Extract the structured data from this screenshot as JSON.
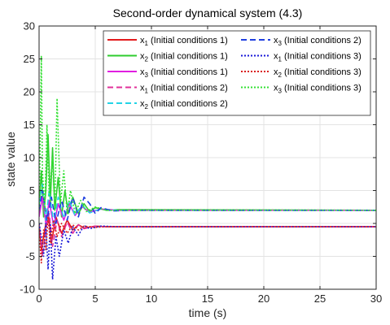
{
  "chart_data": {
    "type": "line",
    "title": "Second-order dynamical system (4.3)",
    "xlabel": "time (s)",
    "ylabel": "state value",
    "xlim": [
      0,
      30
    ],
    "ylim": [
      -10,
      30
    ],
    "xticks": [
      0,
      5,
      10,
      15,
      20,
      25,
      30
    ],
    "yticks": [
      -10,
      -5,
      0,
      5,
      10,
      15,
      20,
      25,
      30
    ],
    "grid": true,
    "legend_position": "top-right",
    "series": [
      {
        "name": "x1 (Initial conditions 1)",
        "var": "x",
        "sub": "1",
        "cond": "(Initial conditions 1)",
        "color": "#e31a1c",
        "dash": "solid",
        "points": [
          [
            0,
            0
          ],
          [
            0.2,
            -4
          ],
          [
            0.5,
            -1
          ],
          [
            0.8,
            2
          ],
          [
            1.1,
            -3
          ],
          [
            1.5,
            1
          ],
          [
            2,
            -1.5
          ],
          [
            2.5,
            0.5
          ],
          [
            3,
            -1
          ],
          [
            3.5,
            -0.2
          ],
          [
            4,
            -0.7
          ],
          [
            5,
            -0.4
          ],
          [
            6,
            -0.5
          ],
          [
            30,
            -0.5
          ]
        ]
      },
      {
        "name": "x2 (Initial conditions 1)",
        "var": "x",
        "sub": "2",
        "cond": "(Initial conditions 1)",
        "color": "#2ecc2e",
        "dash": "solid",
        "points": [
          [
            0,
            2
          ],
          [
            0.2,
            8
          ],
          [
            0.4,
            1
          ],
          [
            0.6,
            5
          ],
          [
            0.8,
            13.5
          ],
          [
            1,
            3
          ],
          [
            1.2,
            11.5
          ],
          [
            1.4,
            2
          ],
          [
            1.7,
            7
          ],
          [
            2,
            1
          ],
          [
            2.3,
            5
          ],
          [
            2.6,
            1.5
          ],
          [
            3,
            4
          ],
          [
            3.5,
            1.5
          ],
          [
            4,
            3
          ],
          [
            4.5,
            1.8
          ],
          [
            5,
            2.4
          ],
          [
            6,
            2
          ],
          [
            7,
            2.1
          ],
          [
            30,
            2
          ]
        ]
      },
      {
        "name": "x3 (Initial conditions 1)",
        "var": "x",
        "sub": "3",
        "cond": "(Initial conditions 1)",
        "color": "#e01ee0",
        "dash": "solid",
        "points": [
          [
            0,
            1
          ],
          [
            0.3,
            4
          ],
          [
            0.6,
            0
          ],
          [
            0.9,
            3.5
          ],
          [
            1.3,
            -0.5
          ],
          [
            1.7,
            3
          ],
          [
            2.2,
            0.5
          ],
          [
            2.7,
            3
          ],
          [
            3.2,
            1.2
          ],
          [
            3.8,
            2.6
          ],
          [
            4.5,
            1.7
          ],
          [
            5.5,
            2.2
          ],
          [
            7,
            2
          ],
          [
            30,
            2
          ]
        ]
      },
      {
        "name": "x1 (Initial conditions 2)",
        "var": "x",
        "sub": "1",
        "cond": "(Initial conditions 2)",
        "color": "#e0309a",
        "dash": "dash",
        "points": [
          [
            0,
            0
          ],
          [
            0.3,
            -5
          ],
          [
            0.6,
            -1
          ],
          [
            0.9,
            1.5
          ],
          [
            1.2,
            -3.5
          ],
          [
            1.6,
            0.5
          ],
          [
            2,
            -2
          ],
          [
            2.5,
            0.2
          ],
          [
            3,
            -1.5
          ],
          [
            3.5,
            -0.2
          ],
          [
            4,
            -0.8
          ],
          [
            5,
            -0.4
          ],
          [
            6,
            -0.5
          ],
          [
            30,
            -0.5
          ]
        ]
      },
      {
        "name": "x2 (Initial conditions 2)",
        "var": "x",
        "sub": "2",
        "cond": "(Initial conditions 2)",
        "color": "#22d3e6",
        "dash": "dash",
        "points": [
          [
            0,
            3
          ],
          [
            0.3,
            6
          ],
          [
            0.6,
            0.5
          ],
          [
            0.9,
            5
          ],
          [
            1.3,
            0
          ],
          [
            1.7,
            4
          ],
          [
            2.2,
            0.8
          ],
          [
            2.7,
            3.5
          ],
          [
            3.2,
            1.2
          ],
          [
            3.8,
            2.8
          ],
          [
            4.5,
            1.6
          ],
          [
            5.5,
            2.2
          ],
          [
            7,
            2
          ],
          [
            30,
            2
          ]
        ]
      },
      {
        "name": "x3 (Initial conditions 2)",
        "var": "x",
        "sub": "3",
        "cond": "(Initial conditions 2)",
        "color": "#1f3fe0",
        "dash": "dash",
        "points": [
          [
            0,
            2
          ],
          [
            0.3,
            5
          ],
          [
            0.7,
            0.5
          ],
          [
            1.1,
            4
          ],
          [
            1.5,
            0
          ],
          [
            2,
            3.5
          ],
          [
            2.5,
            0.5
          ],
          [
            3,
            4
          ],
          [
            3.5,
            1
          ],
          [
            4,
            4
          ],
          [
            4.5,
            3
          ],
          [
            5,
            1.5
          ],
          [
            5.5,
            2.4
          ],
          [
            6.5,
            1.9
          ],
          [
            8,
            2
          ],
          [
            30,
            2
          ]
        ]
      },
      {
        "name": "x1 (Initial conditions 3)",
        "var": "x",
        "sub": "1",
        "cond": "(Initial conditions 3)",
        "color": "#1a1ad8",
        "dash": "dot",
        "points": [
          [
            0,
            0
          ],
          [
            0.2,
            -2
          ],
          [
            0.4,
            -5
          ],
          [
            0.6,
            0
          ],
          [
            0.8,
            -7
          ],
          [
            1,
            0
          ],
          [
            1.2,
            -8.5
          ],
          [
            1.5,
            -2
          ],
          [
            1.8,
            -5
          ],
          [
            2.2,
            -1
          ],
          [
            2.6,
            -3
          ],
          [
            3,
            -0.5
          ],
          [
            3.5,
            -1.8
          ],
          [
            4,
            -0.3
          ],
          [
            4.5,
            -0.8
          ],
          [
            5.5,
            -0.4
          ],
          [
            7,
            -0.5
          ],
          [
            30,
            -0.5
          ]
        ]
      },
      {
        "name": "x2 (Initial conditions 3)",
        "var": "x",
        "sub": "2",
        "cond": "(Initial conditions 3)",
        "color": "#d91e1e",
        "dash": "dot",
        "points": [
          [
            0,
            -1
          ],
          [
            0.2,
            -6
          ],
          [
            0.4,
            -1
          ],
          [
            0.6,
            -4
          ],
          [
            0.8,
            1
          ],
          [
            1,
            -3
          ],
          [
            1.3,
            0.5
          ],
          [
            1.6,
            -2
          ],
          [
            2,
            0
          ],
          [
            2.5,
            -1.5
          ],
          [
            3,
            -0.2
          ],
          [
            3.5,
            -1
          ],
          [
            4,
            -0.4
          ],
          [
            5,
            -0.6
          ],
          [
            6,
            -0.5
          ],
          [
            30,
            -0.5
          ]
        ]
      },
      {
        "name": "x3 (Initial conditions 3)",
        "var": "x",
        "sub": "3",
        "cond": "(Initial conditions 3)",
        "color": "#33e033",
        "dash": "dot",
        "points": [
          [
            0,
            2
          ],
          [
            0.1,
            12
          ],
          [
            0.2,
            25.5
          ],
          [
            0.3,
            8
          ],
          [
            0.5,
            2
          ],
          [
            0.7,
            15
          ],
          [
            0.9,
            4
          ],
          [
            1.2,
            10
          ],
          [
            1.4,
            2
          ],
          [
            1.6,
            19
          ],
          [
            1.9,
            3
          ],
          [
            2.2,
            8
          ],
          [
            2.5,
            1.5
          ],
          [
            2.8,
            5
          ],
          [
            3.2,
            1.5
          ],
          [
            3.7,
            3.5
          ],
          [
            4.2,
            1.8
          ],
          [
            5,
            2.5
          ],
          [
            6,
            2
          ],
          [
            30,
            2
          ]
        ]
      }
    ]
  }
}
